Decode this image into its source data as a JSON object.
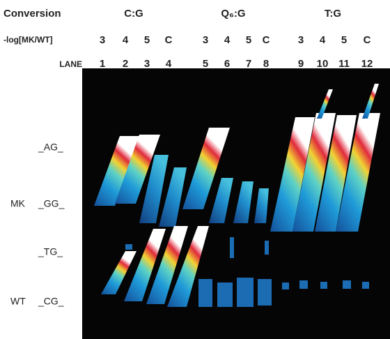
{
  "header": {
    "conversion_label": "Conversion",
    "groups": [
      "C:G",
      "Q₆:G",
      "T:G"
    ],
    "dose_label": "-log[MK/WT]",
    "doses": [
      "3",
      "4",
      "5",
      "C",
      "3",
      "4",
      "5",
      "C",
      "3",
      "4",
      "5",
      "C"
    ],
    "lane_label": "LANE",
    "lanes": [
      "1",
      "2",
      "3",
      "4",
      "5",
      "6",
      "7",
      "8",
      "9",
      "10",
      "11",
      "12"
    ]
  },
  "bands": {
    "ag": "_AG_",
    "mk": "MK",
    "gg": "_GG_",
    "tg": "_TG_",
    "wt": "WT",
    "cg": "_CG_"
  }
}
